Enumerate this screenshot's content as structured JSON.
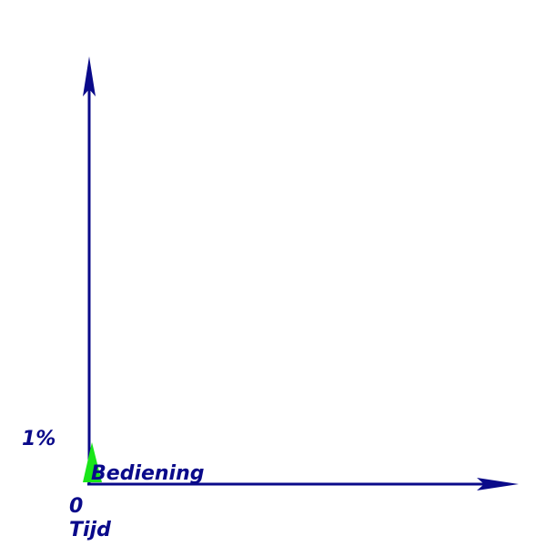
{
  "colors": {
    "axis": "#0a0a8a",
    "label": "#0a0a8a",
    "marker": "#19e619"
  },
  "axes": {
    "y_tick_label": "1%",
    "x_origin_label": "0",
    "x_axis_label": "Tijd"
  },
  "series": {
    "label": "Bediening",
    "marker_icon": "triangle-marker"
  }
}
